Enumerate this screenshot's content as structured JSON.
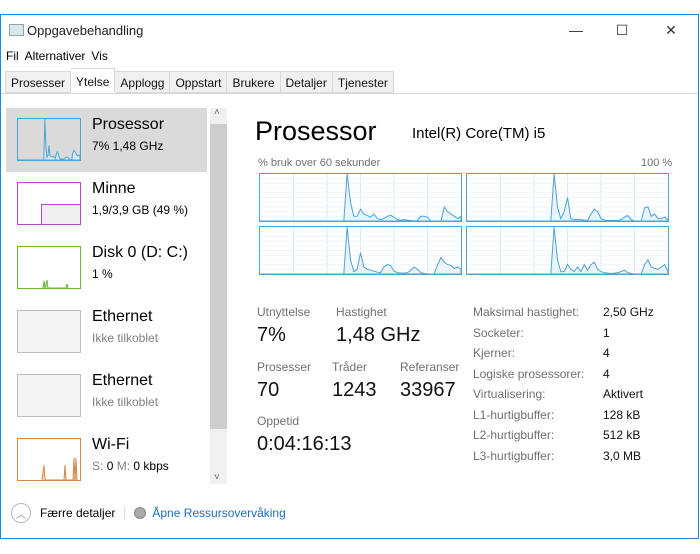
{
  "window": {
    "title": "Oppgavebehandling",
    "controls": [
      "—",
      "☐",
      "✕"
    ]
  },
  "menu": [
    "Fil",
    "Alternativer",
    "Vis"
  ],
  "tabs": [
    {
      "label": "Prosesser"
    },
    {
      "label": "Ytelse",
      "active": true
    },
    {
      "label": "Applogg"
    },
    {
      "label": "Oppstart"
    },
    {
      "label": "Brukere"
    },
    {
      "label": "Detaljer"
    },
    {
      "label": "Tjenester"
    }
  ],
  "sidebar": [
    {
      "name": "Prosessor",
      "sub": "7% 1,48 GHz",
      "color": "#4fa3d1",
      "selected": true
    },
    {
      "name": "Minne",
      "sub": "1,9/3,9 GB (49 %)",
      "color": "#b04dc5"
    },
    {
      "name": "Disk 0 (D: C:)",
      "sub": "1 %",
      "color": "#6db33f"
    },
    {
      "name": "Ethernet",
      "sub": "Ikke tilkoblet",
      "color": "#bdbdbd"
    },
    {
      "name": "Ethernet",
      "sub": "Ikke tilkoblet",
      "color": "#bdbdbd"
    },
    {
      "name": "Wi-Fi",
      "sub_s": "S:",
      "sub_s_val": "0",
      "sub_m": "M:",
      "sub_m_val": "0 kbps",
      "color": "#d08a4a"
    }
  ],
  "main": {
    "title": "Prosessor",
    "model": "Intel(R) Core(TM) i5",
    "graph_caption": "% bruk over 60 sekunder",
    "graph_max": "100 %",
    "cpu_history": [
      [
        0,
        0,
        0,
        0,
        0,
        0,
        0,
        0,
        0,
        0,
        0,
        0,
        0,
        0,
        0,
        0,
        0,
        0,
        0,
        0,
        0,
        0,
        0,
        0,
        0,
        0,
        100,
        40,
        10,
        10,
        25,
        15,
        12,
        8,
        15,
        5,
        3,
        5,
        10,
        12,
        8,
        3,
        2,
        3,
        2,
        1,
        0,
        1,
        10,
        10,
        8,
        0,
        0,
        0,
        0,
        30,
        20,
        15,
        10,
        5,
        10
      ],
      [
        0,
        0,
        0,
        0,
        0,
        0,
        0,
        0,
        0,
        0,
        0,
        0,
        0,
        0,
        0,
        0,
        0,
        0,
        0,
        0,
        0,
        0,
        0,
        0,
        0,
        0,
        100,
        30,
        5,
        20,
        50,
        5,
        3,
        3,
        3,
        2,
        1,
        15,
        25,
        20,
        5,
        2,
        1,
        1,
        1,
        1,
        3,
        8,
        12,
        3,
        0,
        0,
        0,
        28,
        30,
        10,
        15,
        5,
        5,
        8,
        2
      ],
      [
        0,
        0,
        0,
        0,
        0,
        0,
        0,
        0,
        0,
        0,
        0,
        0,
        0,
        0,
        0,
        0,
        0,
        0,
        0,
        0,
        0,
        0,
        0,
        0,
        0,
        0,
        100,
        30,
        5,
        10,
        45,
        15,
        10,
        8,
        6,
        4,
        3,
        15,
        20,
        18,
        6,
        3,
        2,
        2,
        3,
        8,
        15,
        10,
        3,
        1,
        0,
        0,
        0,
        20,
        35,
        25,
        20,
        18,
        12,
        15,
        10
      ],
      [
        0,
        0,
        0,
        0,
        0,
        0,
        0,
        0,
        0,
        0,
        0,
        0,
        0,
        0,
        0,
        0,
        0,
        0,
        0,
        0,
        0,
        0,
        0,
        0,
        0,
        0,
        100,
        30,
        5,
        5,
        20,
        10,
        5,
        15,
        5,
        20,
        8,
        20,
        25,
        10,
        5,
        3,
        2,
        1,
        2,
        3,
        5,
        8,
        3,
        1,
        0,
        0,
        0,
        20,
        30,
        15,
        12,
        10,
        15,
        20,
        5
      ]
    ],
    "stats": {
      "utilization_label": "Utnyttelse",
      "utilization": "7%",
      "speed_label": "Hastighet",
      "speed": "1,48 GHz",
      "processes_label": "Prosesser",
      "processes": "70",
      "threads_label": "Tråder",
      "threads": "1243",
      "handles_label": "Referanser",
      "handles": "33967",
      "uptime_label": "Oppetid",
      "uptime": "0:04:16:13"
    },
    "specs": [
      {
        "label": "Maksimal hastighet:",
        "value": "2,50 GHz"
      },
      {
        "label": "Socketer:",
        "value": "1"
      },
      {
        "label": "Kjerner:",
        "value": "4"
      },
      {
        "label": "Logiske prosessorer:",
        "value": "4"
      },
      {
        "label": "Virtualisering:",
        "value": "Aktivert"
      },
      {
        "label": "L1-hurtigbuffer:",
        "value": "128 kB"
      },
      {
        "label": "L2-hurtigbuffer:",
        "value": "512 kB"
      },
      {
        "label": "L3-hurtigbuffer:",
        "value": "3,0 MB"
      }
    ]
  },
  "footer": {
    "fewer_details": "Færre detaljer",
    "open_resmon": "Åpne Ressursovervåking"
  },
  "colors": {
    "accent": "#1e88e5",
    "cpu": "#4fa3d1",
    "link": "#1a6fc4"
  }
}
